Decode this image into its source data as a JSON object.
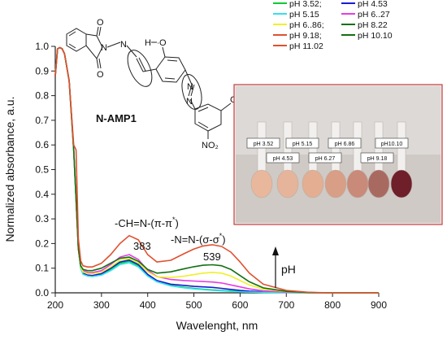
{
  "chart_data": {
    "type": "line",
    "xlabel": "Wavelenght, nm",
    "ylabel": "Normalized absorbance, a.u.",
    "xlim": [
      200,
      900
    ],
    "ylim": [
      0,
      1.0
    ],
    "xticks": [
      "200",
      "300",
      "400",
      "500",
      "600",
      "700",
      "800",
      "900"
    ],
    "yticks": [
      "0.0",
      "0.1",
      "0.2",
      "0.3",
      "0.4",
      "0.5",
      "0.6",
      "0.7",
      "0.8",
      "0.9",
      "1.0"
    ],
    "legend_position": "top-right",
    "series": [
      {
        "name": "pH 3.52;",
        "color": "#00cc33",
        "x": [
          200,
          205,
          210,
          215,
          220,
          230,
          240,
          245,
          250,
          255,
          260,
          270,
          280,
          300,
          320,
          340,
          360,
          380,
          400,
          420,
          450,
          480,
          500,
          520,
          540,
          560,
          580,
          600,
          620,
          650,
          700,
          750,
          800,
          900
        ],
        "y": [
          0.88,
          0.99,
          0.995,
          0.99,
          0.97,
          0.86,
          0.58,
          0.38,
          0.18,
          0.1,
          0.08,
          0.07,
          0.068,
          0.075,
          0.095,
          0.12,
          0.128,
          0.11,
          0.07,
          0.045,
          0.03,
          0.022,
          0.018,
          0.015,
          0.012,
          0.01,
          0.008,
          0.006,
          0.004,
          0.002,
          0.001,
          0,
          0,
          0
        ]
      },
      {
        "name": "pH 4.53",
        "color": "#1a1ad6",
        "x": [
          200,
          205,
          210,
          215,
          220,
          230,
          240,
          245,
          250,
          255,
          260,
          270,
          280,
          300,
          320,
          340,
          360,
          380,
          400,
          420,
          450,
          480,
          500,
          520,
          540,
          560,
          580,
          600,
          620,
          650,
          700,
          750,
          800,
          900
        ],
        "y": [
          0.88,
          0.99,
          0.995,
          0.99,
          0.97,
          0.86,
          0.58,
          0.38,
          0.18,
          0.1,
          0.08,
          0.072,
          0.07,
          0.078,
          0.1,
          0.125,
          0.133,
          0.115,
          0.075,
          0.05,
          0.035,
          0.03,
          0.026,
          0.024,
          0.022,
          0.018,
          0.014,
          0.01,
          0.007,
          0.004,
          0.002,
          0.001,
          0,
          0
        ]
      },
      {
        "name": "pH 5.15",
        "color": "#33e0ee",
        "x": [
          200,
          205,
          210,
          215,
          220,
          230,
          240,
          245,
          250,
          255,
          260,
          270,
          280,
          300,
          320,
          340,
          360,
          380,
          400,
          420,
          450,
          480,
          500,
          520,
          540,
          560,
          580,
          600,
          620,
          650,
          700,
          750,
          800,
          900
        ],
        "y": [
          0.88,
          0.99,
          0.995,
          0.99,
          0.97,
          0.86,
          0.58,
          0.38,
          0.18,
          0.1,
          0.075,
          0.068,
          0.066,
          0.072,
          0.09,
          0.115,
          0.122,
          0.105,
          0.068,
          0.045,
          0.028,
          0.02,
          0.016,
          0.013,
          0.01,
          0.008,
          0.006,
          0.004,
          0.003,
          0.002,
          0.001,
          0,
          0,
          0
        ]
      },
      {
        "name": "pH 6..27",
        "color": "#e63ce6",
        "x": [
          200,
          205,
          210,
          215,
          220,
          230,
          240,
          245,
          250,
          255,
          260,
          270,
          280,
          300,
          320,
          340,
          360,
          380,
          400,
          420,
          450,
          480,
          500,
          520,
          540,
          560,
          580,
          600,
          620,
          650,
          700,
          750,
          800,
          900
        ],
        "y": [
          0.88,
          0.99,
          0.995,
          0.99,
          0.97,
          0.86,
          0.58,
          0.38,
          0.18,
          0.11,
          0.09,
          0.083,
          0.082,
          0.09,
          0.115,
          0.145,
          0.155,
          0.135,
          0.092,
          0.066,
          0.054,
          0.05,
          0.048,
          0.046,
          0.044,
          0.04,
          0.032,
          0.024,
          0.016,
          0.008,
          0.003,
          0.001,
          0,
          0
        ]
      },
      {
        "name": "pH 6..86;",
        "color": "#f0f02a",
        "x": [
          200,
          205,
          210,
          215,
          220,
          230,
          240,
          245,
          250,
          255,
          260,
          270,
          280,
          300,
          320,
          340,
          360,
          380,
          400,
          420,
          450,
          480,
          500,
          520,
          540,
          560,
          580,
          600,
          620,
          650,
          700,
          750,
          800,
          900
        ],
        "y": [
          0.88,
          0.99,
          0.995,
          0.99,
          0.97,
          0.86,
          0.58,
          0.38,
          0.18,
          0.105,
          0.085,
          0.078,
          0.077,
          0.084,
          0.105,
          0.132,
          0.14,
          0.122,
          0.085,
          0.065,
          0.062,
          0.068,
          0.074,
          0.08,
          0.083,
          0.08,
          0.068,
          0.05,
          0.032,
          0.015,
          0.005,
          0.001,
          0,
          0
        ]
      },
      {
        "name": "pH 8.22",
        "color": "#127012",
        "x": [
          200,
          205,
          210,
          215,
          220,
          230,
          240,
          245,
          250,
          255,
          260,
          270,
          280,
          300,
          320,
          340,
          360,
          380,
          400,
          420,
          450,
          480,
          500,
          520,
          540,
          560,
          580,
          600,
          620,
          650,
          700,
          750,
          800,
          900
        ],
        "y": [
          0.88,
          0.99,
          0.995,
          0.99,
          0.97,
          0.86,
          0.58,
          0.38,
          0.18,
          0.11,
          0.095,
          0.09,
          0.09,
          0.1,
          0.12,
          0.14,
          0.145,
          0.128,
          0.095,
          0.08,
          0.085,
          0.098,
          0.106,
          0.112,
          0.114,
          0.11,
          0.095,
          0.07,
          0.045,
          0.02,
          0.006,
          0.001,
          0,
          0
        ]
      },
      {
        "name": "pH 9.18;",
        "color": "#e05030",
        "x": [
          200,
          205,
          210,
          215,
          220,
          230,
          240,
          245,
          250,
          255,
          260,
          270,
          280,
          300,
          320,
          340,
          360,
          380,
          400,
          420,
          450,
          480,
          500,
          520,
          540,
          560,
          580,
          600,
          620,
          650,
          700,
          750,
          800,
          900
        ],
        "y": [
          0.88,
          0.99,
          0.995,
          0.99,
          0.97,
          0.86,
          0.6,
          0.58,
          0.22,
          0.13,
          0.11,
          0.105,
          0.105,
          0.12,
          0.155,
          0.2,
          0.232,
          0.215,
          0.155,
          0.125,
          0.132,
          0.16,
          0.178,
          0.19,
          0.195,
          0.188,
          0.165,
          0.125,
          0.08,
          0.035,
          0.01,
          0.002,
          0,
          0
        ]
      },
      {
        "name": "pH 10.10",
        "color": "#127012",
        "x": [],
        "y": []
      },
      {
        "name": "pH 11.02",
        "color": "#e05030",
        "x": [],
        "y": []
      }
    ],
    "peak_labels": [
      {
        "text": "383"
      },
      {
        "text": "539"
      }
    ],
    "annotations": {
      "transition1": "-CH=N-(π-π*)",
      "transition2": "-N=N-(σ-σ*)",
      "ph_arrow": "pH",
      "compound": "N-AMP1"
    }
  },
  "molecule": {
    "atoms": [
      {
        "text": "O"
      },
      {
        "text": "N"
      },
      {
        "text": "O"
      },
      {
        "text": "N"
      },
      {
        "text": "H"
      },
      {
        "text": "O"
      },
      {
        "text": "N"
      },
      {
        "text": "N"
      },
      {
        "text": "CN"
      },
      {
        "text": "NO₂"
      }
    ]
  },
  "photo": {
    "labels": [
      "pH 3.52",
      "pH 5.15",
      "pH 6.86",
      "pH10.10",
      "pH 4.53",
      "pH 6.27",
      "pH 9.18"
    ]
  }
}
